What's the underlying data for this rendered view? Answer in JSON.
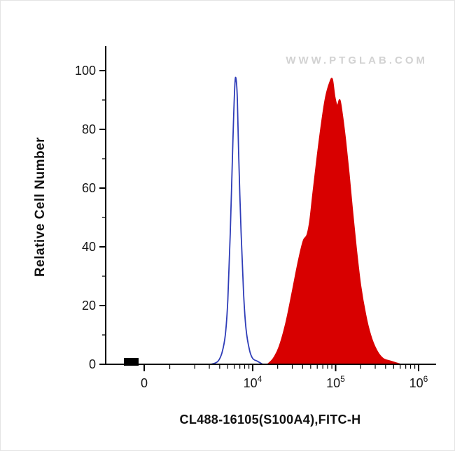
{
  "page": {
    "background": "#ffffff"
  },
  "watermark": "WWW.PTGLAB.COM",
  "chart_data": {
    "type": "area",
    "subtype": "flow-cytometry-histogram-overlay",
    "title": "",
    "xlabel": "CL488-16105(S100A4),FITC-H",
    "ylabel": "Relative Cell Number",
    "x_scale": "biexponential (labeled log decades 10^4 to 10^6, compressed region near 0)",
    "x_ticks": [
      {
        "label": "0"
      },
      {
        "base": "10",
        "exp": "4"
      },
      {
        "base": "10",
        "exp": "5"
      },
      {
        "base": "10",
        "exp": "6"
      }
    ],
    "y_ticks": [
      0,
      20,
      40,
      60,
      80,
      100
    ],
    "y_minor_ticks": [
      10,
      30,
      50,
      70,
      90
    ],
    "ylim": [
      0,
      105
    ],
    "grid": false,
    "legend": "none",
    "colors": {
      "axis": "#000000",
      "control": "#2f3db8",
      "sample": "#d80000",
      "watermark": "#d2d2d2"
    },
    "series": [
      {
        "name": "control (open blue histogram)",
        "style": "open",
        "stroke": "#2f3db8",
        "fill": "none",
        "peak": {
          "x_approx": 6300,
          "y": 97
        },
        "points_logx_y": [
          [
            3.5,
            0
          ],
          [
            3.58,
            1
          ],
          [
            3.63,
            4
          ],
          [
            3.67,
            10
          ],
          [
            3.7,
            22
          ],
          [
            3.73,
            45
          ],
          [
            3.76,
            75
          ],
          [
            3.785,
            95
          ],
          [
            3.8,
            97
          ],
          [
            3.815,
            90
          ],
          [
            3.83,
            72
          ],
          [
            3.86,
            45
          ],
          [
            3.89,
            24
          ],
          [
            3.92,
            12
          ],
          [
            3.96,
            5
          ],
          [
            4.0,
            2
          ],
          [
            4.06,
            1
          ],
          [
            4.12,
            0
          ]
        ]
      },
      {
        "name": "CL488-16105 S100A4 (filled red histogram)",
        "style": "filled",
        "stroke": "#d80000",
        "fill": "#d80000",
        "peak": {
          "x_approx": 90000,
          "y": 97
        },
        "points_logx_y": [
          [
            4.18,
            0
          ],
          [
            4.25,
            2
          ],
          [
            4.32,
            6
          ],
          [
            4.4,
            14
          ],
          [
            4.48,
            25
          ],
          [
            4.55,
            35
          ],
          [
            4.61,
            42
          ],
          [
            4.655,
            44
          ],
          [
            4.69,
            49
          ],
          [
            4.73,
            59
          ],
          [
            4.78,
            71
          ],
          [
            4.83,
            82
          ],
          [
            4.88,
            91
          ],
          [
            4.93,
            96
          ],
          [
            4.96,
            97
          ],
          [
            4.99,
            91
          ],
          [
            5.02,
            88
          ],
          [
            5.05,
            90
          ],
          [
            5.08,
            85
          ],
          [
            5.12,
            76
          ],
          [
            5.16,
            65
          ],
          [
            5.2,
            53
          ],
          [
            5.25,
            39
          ],
          [
            5.3,
            27
          ],
          [
            5.36,
            17
          ],
          [
            5.42,
            10
          ],
          [
            5.49,
            5
          ],
          [
            5.57,
            2
          ],
          [
            5.67,
            1
          ],
          [
            5.78,
            0
          ]
        ]
      }
    ],
    "off_scale_bar": {
      "present": true,
      "color": "#000000",
      "location": "baseline near axis origin left of 0 tick"
    }
  }
}
